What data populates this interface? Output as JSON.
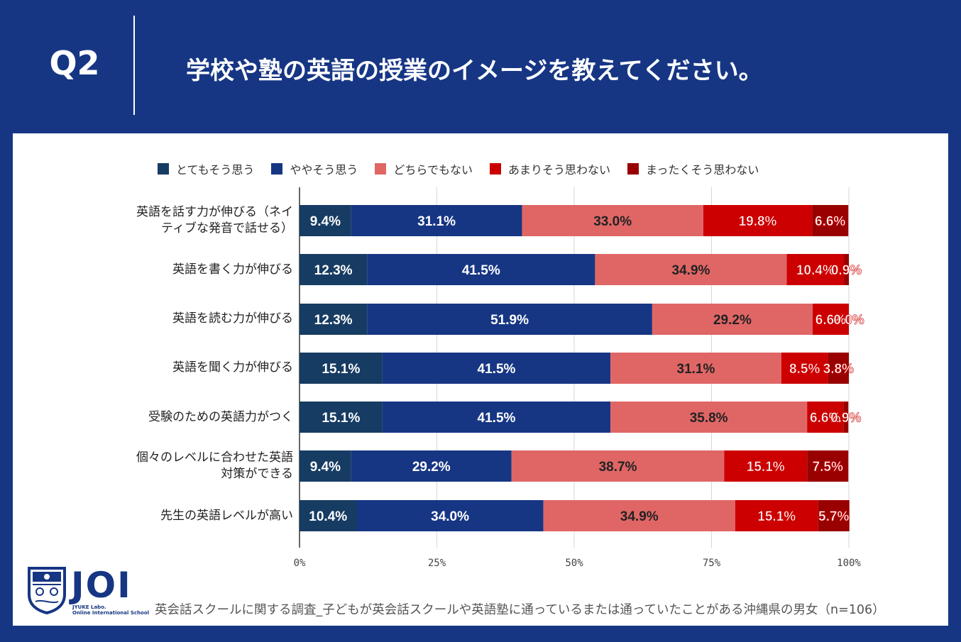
{
  "header": {
    "q_label": "Q2",
    "question": "学校や塾の英語の授業のイメージを教えてください。"
  },
  "footer": {
    "note": "英会話スクールに関する調査_子どもが英会話スクールや英語塾に通っているまたは通っていたことがある沖縄県の男女（n=106）"
  },
  "logo": {
    "name": "JOI",
    "sub1": "JYUKE Labo.",
    "sub2": "Online International School"
  },
  "colors": {
    "header_bg": "#163684",
    "s1": "#173c63",
    "s2": "#163684",
    "s3": "#e06666",
    "s4": "#cc0000",
    "s5": "#990000"
  },
  "chart_data": {
    "type": "bar",
    "orientation": "horizontal",
    "stacked": true,
    "normalized": true,
    "categories": [
      [
        "英語を話す力が伸びる（ネイ",
        "ティブな発音で話せる）"
      ],
      [
        "英語を書く力が伸びる"
      ],
      [
        "英語を読む力が伸びる"
      ],
      [
        "英語を聞く力が伸びる"
      ],
      [
        "受験のための英語力がつく"
      ],
      [
        "個々のレベルに合わせた英語",
        "対策ができる"
      ],
      [
        "先生の英語レベルが高い"
      ]
    ],
    "series": [
      {
        "name": "とてもそう思う",
        "values": [
          9.4,
          12.3,
          12.3,
          15.1,
          15.1,
          9.4,
          10.4
        ]
      },
      {
        "name": "ややそう思う",
        "values": [
          31.1,
          41.5,
          51.9,
          41.5,
          41.5,
          29.2,
          34.0
        ]
      },
      {
        "name": "どちらでもない",
        "values": [
          33.0,
          34.9,
          29.2,
          31.1,
          35.8,
          38.7,
          34.9
        ]
      },
      {
        "name": "あまりそう思わない",
        "values": [
          19.8,
          10.4,
          6.6,
          8.5,
          6.6,
          15.1,
          15.1
        ]
      },
      {
        "name": "まったくそう思わない",
        "values": [
          6.6,
          0.9,
          0.0,
          3.8,
          0.9,
          7.5,
          5.7
        ]
      }
    ],
    "x_ticks": [
      "0%",
      "25%",
      "50%",
      "75%",
      "100%"
    ],
    "xlim": [
      0,
      100
    ],
    "legend": "top",
    "grid": true
  }
}
